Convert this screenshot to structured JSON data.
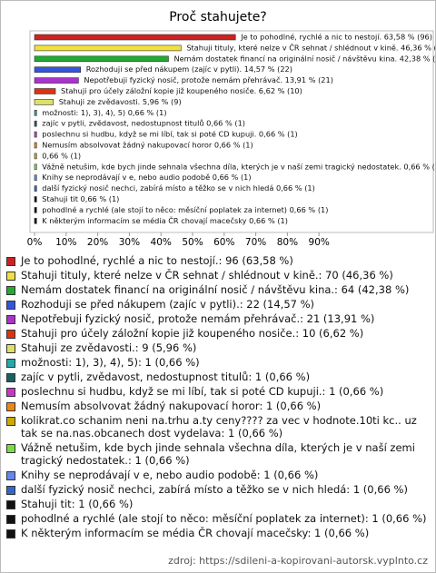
{
  "chart_data": {
    "type": "bar",
    "orientation": "horizontal",
    "title": "Proč stahujete?",
    "values": [
      63.58,
      46.36,
      42.38,
      14.57,
      13.91,
      6.62,
      5.96,
      0.66,
      0.66,
      0.66,
      0.66,
      0.66,
      0.66,
      0.66,
      0.66,
      0.66,
      0.66,
      0.66
    ],
    "value_labels": [
      "Je to pohodlné, rychlé a nic to nestojí. 63,58 % (96)",
      "Stahuji tituly, které nelze v ČR sehnat / shlédnout v kině. 46,36 % (70)",
      "Nemám dostatek financí na originální nosič / návštěvu kina. 42,38 % (64)",
      "Rozhoduji se před nákupem (zajíc v pytli). 14,57 % (22)",
      "Nepotřebuji fyzický nosič, protože nemám přehrávač. 13,91 % (21)",
      "Stahuji pro účely záložní kopie již koupeného nosiče. 6,62 % (10)",
      "Stahuji ze zvědavosti. 5,96 % (9)",
      "možnosti: 1), 3), 4), 5) 0,66 % (1)",
      "zajíc v pytli, zvědavost, nedostupnost titulů 0,66 % (1)",
      "poslechnu si hudbu, když se mi líbí, tak si poté CD kupuji. 0,66 % (1)",
      "Nemusím absolvovat žádný nakupovací horor 0,66 % (1)",
      "0,66 % (1)",
      "Vážně netušim, kde bych jinde sehnala všechna díla, kterých je v naší zemi tragický nedostatek. 0,66 % (1)",
      "Knihy se neprodávají v e, nebo audio podobě 0,66 % (1)",
      "další fyzický nosič nechci, zabírá místo a těžko se v nich hledá 0,66 % (1)",
      "Stahuji tit 0,66 % (1)",
      "pohodlné a rychlé (ale stojí to něco: měsíční poplatek za internet) 0,66 % (1)",
      "K některým informacím se média ČR chovají macečsky 0,66 % (1)"
    ],
    "legend": [
      "Je to pohodlné, rychlé a nic to nestojí.: 96 (63,58 %)",
      "Stahuji tituly, které nelze v ČR sehnat / shlédnout v kině.: 70 (46,36 %)",
      "Nemám dostatek financí na originální nosič / návštěvu kina.: 64 (42,38 %)",
      "Rozhoduji se před nákupem (zajíc v pytli).: 22 (14,57 %)",
      "Nepotřebuji fyzický nosič, protože nemám přehrávač.: 21 (13,91 %)",
      "Stahuji pro účely záložní kopie již koupeného nosiče.: 10 (6,62 %)",
      "Stahuji ze zvědavosti.: 9 (5,96 %)",
      "možnosti: 1), 3), 4), 5): 1 (0,66 %)",
      "zajíc v pytli, zvědavost, nedostupnost titulů: 1 (0,66 %)",
      "poslechnu si hudbu, když se mi líbí, tak si poté CD kupuji.: 1 (0,66 %)",
      "Nemusím absolvovat žádný nakupovací horor: 1 (0,66 %)",
      "kolikrat.co schanim neni na.trhu a.ty ceny???? za vec v hodnote.10ti kc.. uz tak se na.nas.obcanech dost vydelava: 1 (0,66 %)",
      "Vážně netušim, kde bych jinde sehnala všechna díla, kterých je v naší zemi tragický nedostatek.: 1 (0,66 %)",
      "Knihy se neprodávají v e, nebo audio podobě: 1 (0,66 %)",
      "další fyzický nosič nechci, zabírá místo a těžko se v nich hledá: 1 (0,66 %)",
      "Stahuji tit: 1 (0,66 %)",
      "pohodlné a rychlé (ale stojí to něco: měsíční poplatek za internet): 1 (0,66 %)",
      "K některým informacím se média ČR chovají macečsky: 1 (0,66 %)"
    ],
    "colors": [
      "#cc2222",
      "#f0e040",
      "#22aa33",
      "#3355dd",
      "#aa33cc",
      "#dd3311",
      "#dde066",
      "#22aaaa",
      "#1a6060",
      "#cc33cc",
      "#ee8811",
      "#ccaa00",
      "#77dd44",
      "#6688ee",
      "#3366cc",
      "#111111",
      "#111111",
      "#111111"
    ],
    "xlim": [
      0,
      100
    ],
    "xticks": [
      {
        "value": 0,
        "label": "0%"
      },
      {
        "value": 10,
        "label": "10%"
      },
      {
        "value": 20,
        "label": "20%"
      },
      {
        "value": 30,
        "label": "30%"
      },
      {
        "value": 40,
        "label": "40%"
      },
      {
        "value": 50,
        "label": "50%"
      },
      {
        "value": 60,
        "label": "60%"
      },
      {
        "value": 70,
        "label": "70%"
      },
      {
        "value": 80,
        "label": "80%"
      },
      {
        "value": 90,
        "label": "90%"
      }
    ],
    "source": "zdroj: https://sdileni-a-kopirovani-autorsk.vyplnto.cz"
  }
}
